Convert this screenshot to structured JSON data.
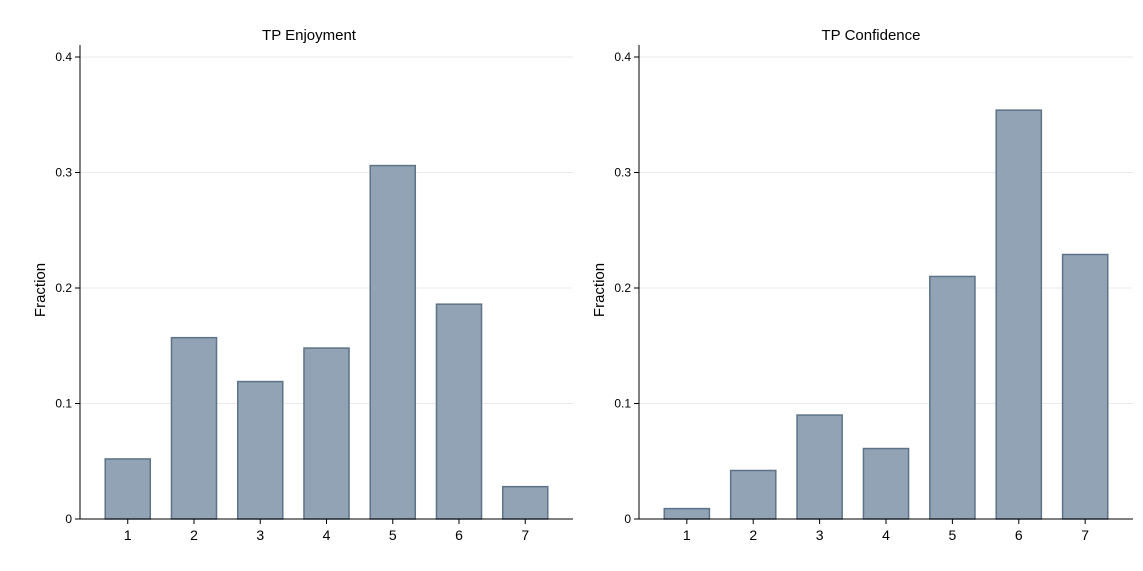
{
  "chart_data": [
    {
      "type": "bar",
      "title": "TP Enjoyment",
      "xlabel": "",
      "ylabel": "Fraction",
      "categories": [
        "1",
        "2",
        "3",
        "4",
        "5",
        "6",
        "7"
      ],
      "values": [
        0.052,
        0.157,
        0.119,
        0.148,
        0.306,
        0.186,
        0.028
      ],
      "ylim": [
        0,
        0.4
      ],
      "yticks": [
        "0",
        "0.1",
        "0.2",
        "0.3",
        "0.4"
      ],
      "grid": true,
      "bar_color": "#91a3b5",
      "bar_edge_color": "#5e7388"
    },
    {
      "type": "bar",
      "title": "TP Confidence",
      "xlabel": "",
      "ylabel": "Fraction",
      "categories": [
        "1",
        "2",
        "3",
        "4",
        "5",
        "6",
        "7"
      ],
      "values": [
        0.009,
        0.042,
        0.09,
        0.061,
        0.21,
        0.354,
        0.229
      ],
      "ylim": [
        0,
        0.4
      ],
      "yticks": [
        "0",
        "0.1",
        "0.2",
        "0.3",
        "0.4"
      ],
      "grid": true,
      "bar_color": "#91a3b5",
      "bar_edge_color": "#5e7388"
    }
  ]
}
